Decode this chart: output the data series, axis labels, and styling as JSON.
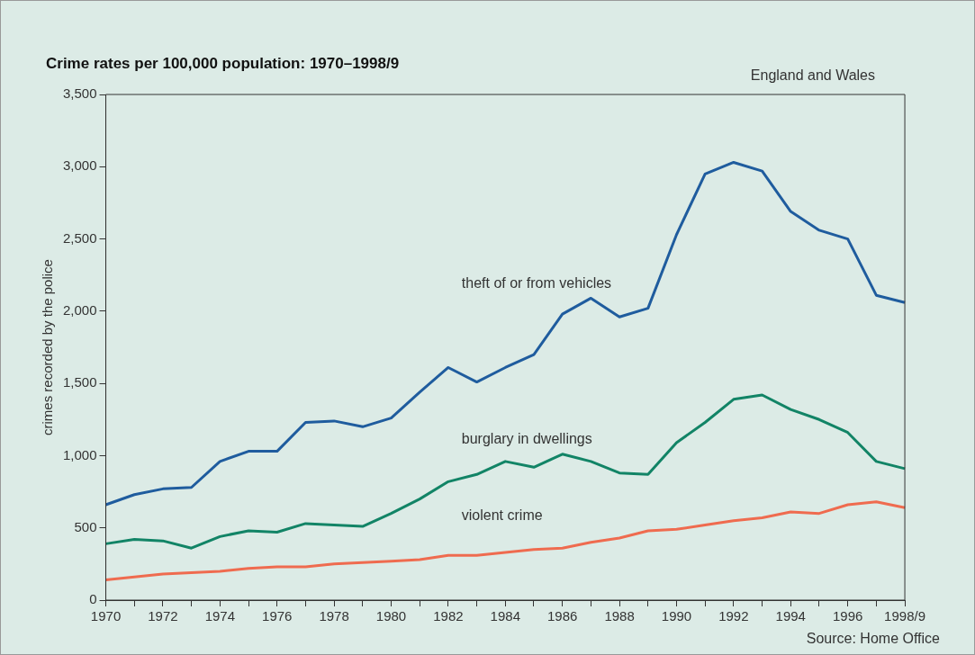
{
  "chart_data": {
    "type": "line",
    "title": "Crime rates per 100,000 population: 1970–1998/9",
    "subtitle": "England and Wales",
    "ylabel": "crimes recorded by the police",
    "annotations": [
      "Source: Home Office"
    ],
    "categories": [
      "1970",
      null,
      "1972",
      null,
      "1974",
      null,
      "1976",
      null,
      "1978",
      null,
      "1980",
      null,
      "1982",
      null,
      "1984",
      null,
      "1986",
      null,
      "1988",
      null,
      "1990",
      null,
      "1992",
      null,
      "1994",
      null,
      "1996",
      null,
      "1998/9"
    ],
    "series": [
      {
        "name": "theft of or from vehicles",
        "color": "#1f5c9e",
        "values": [
          660,
          730,
          770,
          780,
          960,
          1030,
          1030,
          1230,
          1240,
          1200,
          1260,
          1440,
          1610,
          1510,
          1610,
          1700,
          1980,
          2090,
          1960,
          2020,
          2530,
          2950,
          3030,
          2970,
          2690,
          2560,
          2500,
          2110,
          2060
        ]
      },
      {
        "name": "burglary in dwellings",
        "color": "#128466",
        "values": [
          390,
          420,
          410,
          360,
          440,
          480,
          470,
          530,
          520,
          510,
          600,
          700,
          820,
          870,
          960,
          920,
          1010,
          960,
          880,
          870,
          1090,
          1230,
          1390,
          1420,
          1320,
          1250,
          1160,
          960,
          910
        ]
      },
      {
        "name": "violent crime",
        "color": "#ef6b4f",
        "values": [
          140,
          160,
          180,
          190,
          200,
          220,
          230,
          230,
          250,
          260,
          270,
          280,
          310,
          310,
          330,
          350,
          360,
          400,
          430,
          480,
          490,
          520,
          550,
          570,
          610,
          600,
          660,
          680,
          640
        ]
      }
    ],
    "ylim": [
      0,
      3500
    ],
    "yticks": [
      0,
      500,
      {
        "value": 1000,
        "label": "1,000"
      },
      {
        "value": 1500,
        "label": "1,500"
      },
      {
        "value": 2000,
        "label": "2,000"
      },
      {
        "value": 2500,
        "label": "2,500"
      },
      {
        "value": 3000,
        "label": "3,000"
      },
      {
        "value": 3500,
        "label": "3,500"
      }
    ],
    "grid": false,
    "legend": false,
    "marker": "none",
    "line_style": "solid"
  }
}
